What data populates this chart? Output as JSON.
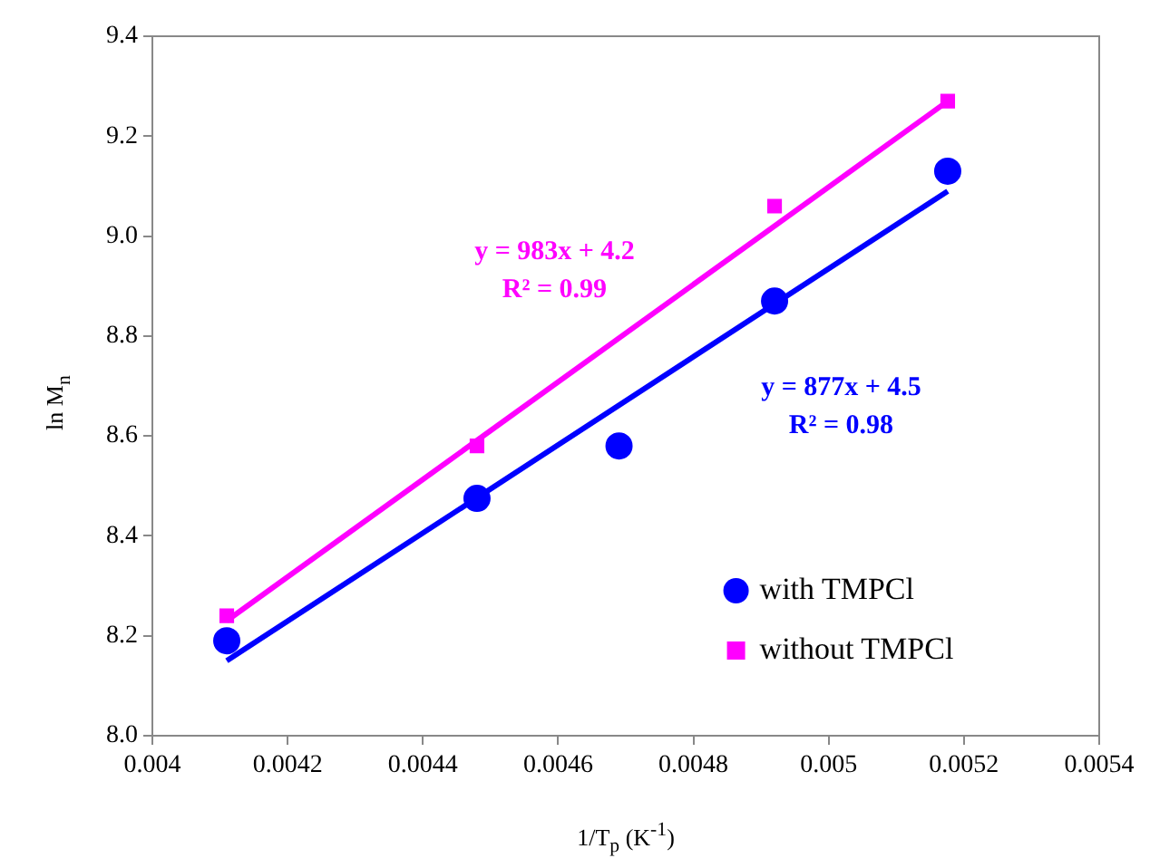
{
  "chart_data": {
    "type": "scatter",
    "xlabel": "1/T$_{p}$ (K$^{-1}$)",
    "ylabel": "ln M$_{n}$",
    "xlim": [
      0.004,
      0.0054
    ],
    "xticks": [
      0.004,
      0.0042,
      0.0044,
      0.0046,
      0.0048,
      0.005,
      0.0052,
      0.0054
    ],
    "ylim": [
      8.0,
      9.4
    ],
    "yticks": [
      {
        "value": 8,
        "label": "8.0"
      },
      {
        "value": 8.2,
        "label": "8.2"
      },
      {
        "value": 8.4,
        "label": "8.4"
      },
      {
        "value": 8.6,
        "label": "8.6"
      },
      {
        "value": 8.8,
        "label": "8.8"
      },
      {
        "value": 9,
        "label": "9.0"
      },
      {
        "value": 9.2,
        "label": "9.2"
      },
      {
        "value": 9.4,
        "label": "9.4"
      }
    ],
    "grid": false,
    "legend": "bottom right",
    "series": [
      {
        "name": "with TMPCl",
        "marker": "circle",
        "color": "#0000ff",
        "x": [
          0.00411,
          0.00448,
          0.00469,
          0.00492,
          0.005176
        ],
        "values": [
          8.19,
          8.475,
          8.58,
          8.87,
          9.13
        ]
      },
      {
        "name": "without TMPCl",
        "marker": "square",
        "color": "#ff00ff",
        "x": [
          0.00411,
          0.00448,
          0.00492,
          0.005176
        ],
        "values": [
          8.24,
          8.58,
          9.06,
          9.27
        ]
      },
      {
        "type": "line",
        "marker": "none",
        "line_style": "solid",
        "color": "#ff00ff",
        "x": [
          0.00411,
          0.005176
        ],
        "values": [
          8.23,
          9.27
        ]
      },
      {
        "type": "line",
        "marker": "none",
        "line_style": "solid",
        "color": "#0000ff",
        "x": [
          0.00411,
          0.005176
        ],
        "values": [
          8.15,
          9.09
        ]
      }
    ],
    "annotations": [
      "y = 983x + 4.2",
      "R² = 0.99",
      "y = 877x + 4.5",
      "R² = 0.98"
    ]
  }
}
